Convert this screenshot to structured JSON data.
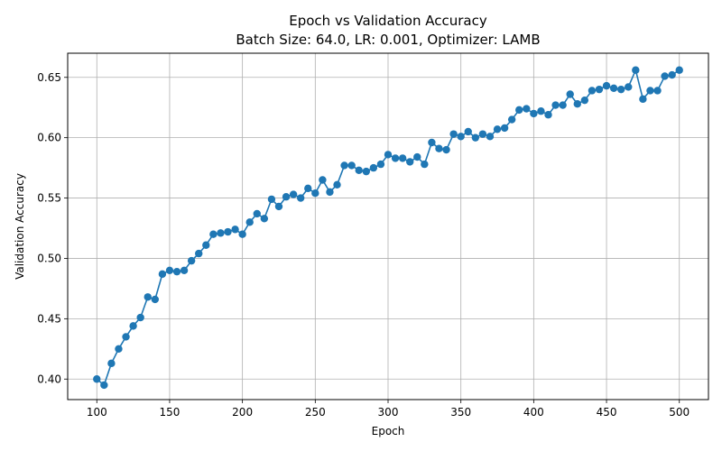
{
  "chart_data": {
    "type": "line",
    "title": "Epoch vs Validation Accuracy",
    "subtitle": "Batch Size: 64.0, LR: 0.001, Optimizer: LAMB",
    "xlabel": "Epoch",
    "ylabel": "Validation Accuracy",
    "xlim": [
      80,
      520
    ],
    "ylim": [
      0.383,
      0.67
    ],
    "xticks": [
      100,
      150,
      200,
      250,
      300,
      350,
      400,
      450,
      500
    ],
    "yticks": [
      0.4,
      0.45,
      0.5,
      0.55,
      0.6,
      0.65
    ],
    "xtick_labels": [
      "100",
      "150",
      "200",
      "250",
      "300",
      "350",
      "400",
      "450",
      "500"
    ],
    "ytick_labels": [
      "0.40",
      "0.45",
      "0.50",
      "0.55",
      "0.60",
      "0.65"
    ],
    "grid": true,
    "color": "#1f77b4",
    "marker": "circle",
    "x": [
      100,
      105,
      110,
      115,
      120,
      125,
      130,
      135,
      140,
      145,
      150,
      155,
      160,
      165,
      170,
      175,
      180,
      185,
      190,
      195,
      200,
      205,
      210,
      215,
      220,
      225,
      230,
      235,
      240,
      245,
      250,
      255,
      260,
      265,
      270,
      275,
      280,
      285,
      290,
      295,
      300,
      305,
      310,
      315,
      320,
      325,
      330,
      335,
      340,
      345,
      350,
      355,
      360,
      365,
      370,
      375,
      380,
      385,
      390,
      395,
      400,
      405,
      410,
      415,
      420,
      425,
      430,
      435,
      440,
      445,
      450,
      455,
      460,
      465,
      470,
      475,
      480,
      485,
      490,
      495,
      500
    ],
    "y": [
      0.4,
      0.395,
      0.413,
      0.425,
      0.435,
      0.444,
      0.451,
      0.468,
      0.466,
      0.487,
      0.49,
      0.489,
      0.49,
      0.498,
      0.504,
      0.511,
      0.52,
      0.521,
      0.522,
      0.524,
      0.52,
      0.53,
      0.537,
      0.533,
      0.549,
      0.543,
      0.551,
      0.553,
      0.55,
      0.558,
      0.554,
      0.565,
      0.555,
      0.561,
      0.577,
      0.577,
      0.573,
      0.572,
      0.575,
      0.578,
      0.586,
      0.583,
      0.583,
      0.58,
      0.584,
      0.578,
      0.596,
      0.591,
      0.59,
      0.603,
      0.601,
      0.605,
      0.6,
      0.603,
      0.601,
      0.607,
      0.608,
      0.615,
      0.623,
      0.624,
      0.62,
      0.622,
      0.619,
      0.627,
      0.627,
      0.636,
      0.628,
      0.631,
      0.639,
      0.64,
      0.643,
      0.641,
      0.64,
      0.642,
      0.656,
      0.632,
      0.639,
      0.639,
      0.651,
      0.652,
      0.656
    ]
  }
}
